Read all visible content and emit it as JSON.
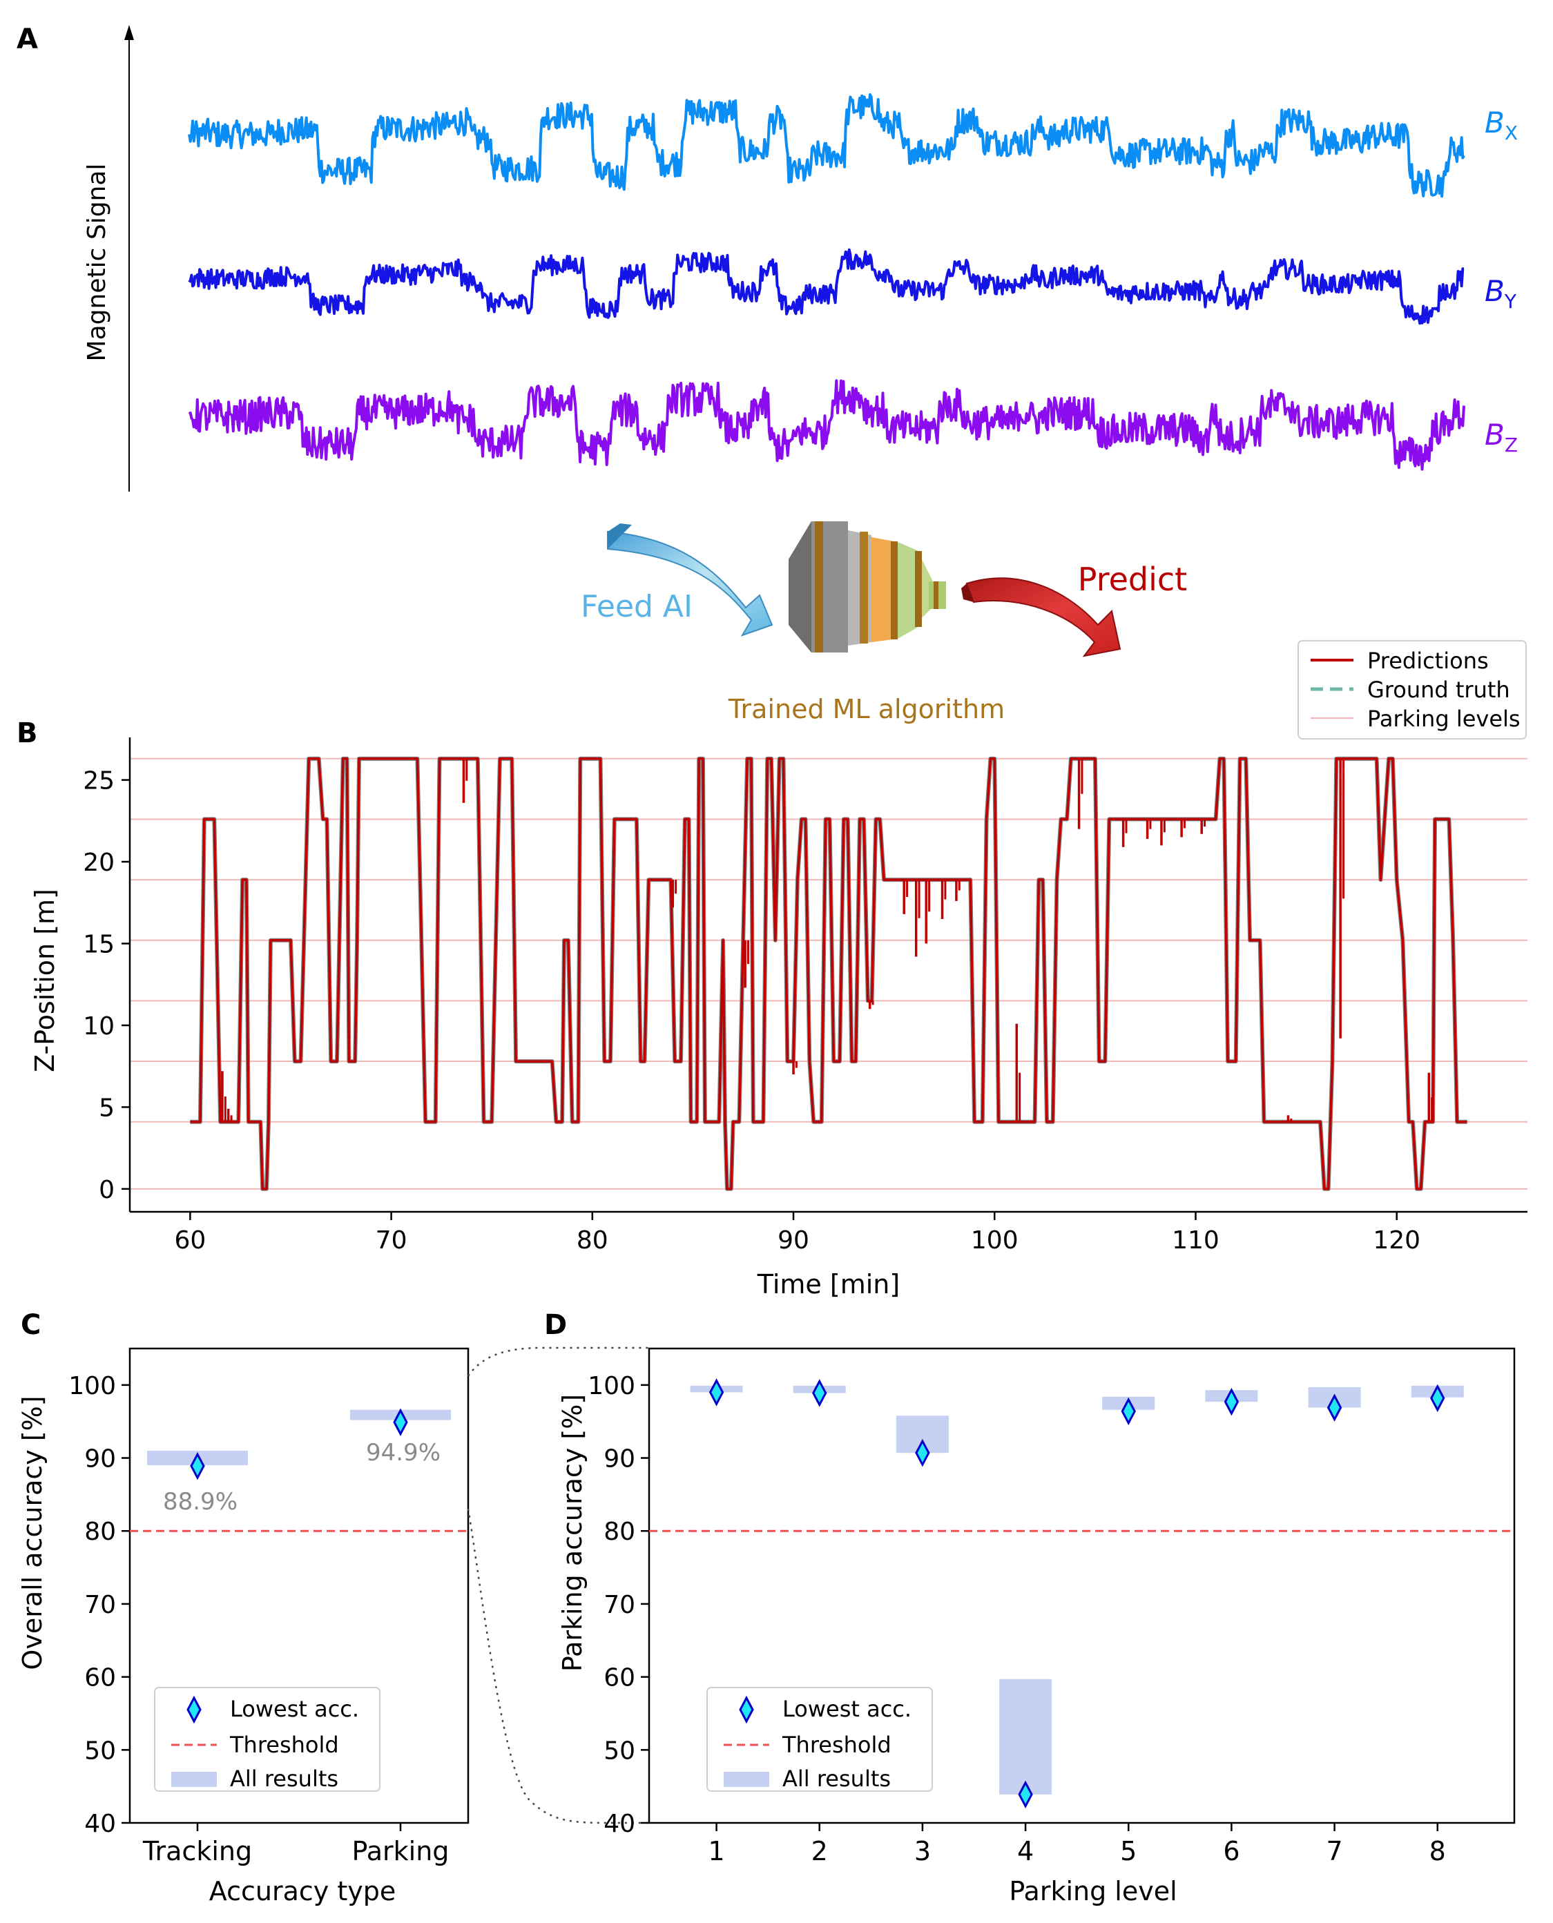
{
  "colors": {
    "bx": "#0a8df5",
    "by": "#1414e6",
    "bz": "#8c0cf0",
    "prediction": "#c00000",
    "ground_truth": "#6fb8a9",
    "gray_line": "#808080",
    "parking_level": "#f2b8b8",
    "threshold": "#f25050",
    "band": "#c6d0f2",
    "diamond_fill": "#22e6f5",
    "diamond_edge": "#0000cc",
    "feed_arrow": "#87d0ea",
    "predict_arrow": "#d42323",
    "ml_text": "#a8751c",
    "annot": "#8a8a8a"
  },
  "panels": {
    "a": {
      "letter": "A"
    },
    "b": {
      "letter": "B"
    },
    "c": {
      "letter": "C"
    },
    "d": {
      "letter": "D"
    }
  },
  "chart_data": [
    {
      "id": "A",
      "type": "line",
      "ylabel": "Magnetic Signal",
      "series": [
        {
          "name": "B",
          "sub": "X",
          "color_key": "bx"
        },
        {
          "name": "B",
          "sub": "Y",
          "color_key": "by"
        },
        {
          "name": "B",
          "sub": "Z",
          "color_key": "bz"
        }
      ],
      "flow": {
        "feed_label": "Feed AI",
        "model_label": "Trained ML algorithm",
        "predict_label": "Predict"
      }
    },
    {
      "id": "B",
      "type": "line",
      "xlabel": "Time [min]",
      "ylabel": "Z-Position [m]",
      "xlim": [
        57,
        126.5
      ],
      "ylim": [
        -1.4,
        27.6
      ],
      "xticks": [
        60,
        70,
        80,
        90,
        100,
        110,
        120
      ],
      "yticks": [
        0,
        5,
        10,
        15,
        20,
        25
      ],
      "parking_levels": [
        0,
        4.1,
        7.8,
        11.5,
        15.2,
        18.9,
        22.6,
        26.3
      ],
      "legend": [
        "Predictions",
        "Ground truth",
        "Parking levels"
      ],
      "legend_position": "top-right",
      "trajectory": [
        [
          60,
          4.1
        ],
        [
          60.5,
          4.1
        ],
        [
          60.7,
          22.6
        ],
        [
          61.2,
          22.6
        ],
        [
          61.5,
          4.1
        ],
        [
          62.4,
          4.1
        ],
        [
          62.6,
          18.9
        ],
        [
          62.8,
          18.9
        ],
        [
          62.9,
          4.1
        ],
        [
          63.5,
          4.1
        ],
        [
          63.6,
          0
        ],
        [
          63.8,
          0
        ],
        [
          63.9,
          4.1
        ],
        [
          64.0,
          15.2
        ],
        [
          65.0,
          15.2
        ],
        [
          65.2,
          7.8
        ],
        [
          65.5,
          7.8
        ],
        [
          65.9,
          26.3
        ],
        [
          66.4,
          26.3
        ],
        [
          66.6,
          22.6
        ],
        [
          66.8,
          22.6
        ],
        [
          67.0,
          7.8
        ],
        [
          67.3,
          7.8
        ],
        [
          67.6,
          26.3
        ],
        [
          67.8,
          26.3
        ],
        [
          67.9,
          7.8
        ],
        [
          68.2,
          7.8
        ],
        [
          68.3,
          15.2
        ],
        [
          68.4,
          26.3
        ],
        [
          71.3,
          26.3
        ],
        [
          71.5,
          15.2
        ],
        [
          71.7,
          4.1
        ],
        [
          72.2,
          4.1
        ],
        [
          72.4,
          26.3
        ],
        [
          74.3,
          26.3
        ],
        [
          74.6,
          4.1
        ],
        [
          75.0,
          4.1
        ],
        [
          75.2,
          15.2
        ],
        [
          75.4,
          26.3
        ],
        [
          76.0,
          26.3
        ],
        [
          76.2,
          7.8
        ],
        [
          78.0,
          7.8
        ],
        [
          78.2,
          4.1
        ],
        [
          78.5,
          4.1
        ],
        [
          78.6,
          15.2
        ],
        [
          78.8,
          15.2
        ],
        [
          79.0,
          4.1
        ],
        [
          79.3,
          4.1
        ],
        [
          79.4,
          26.3
        ],
        [
          80.4,
          26.3
        ],
        [
          80.6,
          7.8
        ],
        [
          80.9,
          7.8
        ],
        [
          81.1,
          22.6
        ],
        [
          82.2,
          22.6
        ],
        [
          82.4,
          7.8
        ],
        [
          82.6,
          7.8
        ],
        [
          82.8,
          18.9
        ],
        [
          83.9,
          18.9
        ],
        [
          84.1,
          7.8
        ],
        [
          84.4,
          7.8
        ],
        [
          84.6,
          22.6
        ],
        [
          84.8,
          22.6
        ],
        [
          84.9,
          4.1
        ],
        [
          85.2,
          4.1
        ],
        [
          85.3,
          26.3
        ],
        [
          85.5,
          26.3
        ],
        [
          85.6,
          4.1
        ],
        [
          86.3,
          4.1
        ],
        [
          86.5,
          15.2
        ],
        [
          86.6,
          4.1
        ],
        [
          86.7,
          0
        ],
        [
          86.9,
          0
        ],
        [
          87.0,
          4.1
        ],
        [
          87.3,
          4.1
        ],
        [
          87.5,
          15.2
        ],
        [
          87.7,
          26.3
        ],
        [
          87.9,
          26.3
        ],
        [
          88.0,
          4.1
        ],
        [
          88.5,
          4.1
        ],
        [
          88.7,
          26.3
        ],
        [
          88.9,
          26.3
        ],
        [
          89.1,
          15.2
        ],
        [
          89.3,
          26.3
        ],
        [
          89.5,
          26.3
        ],
        [
          89.7,
          7.8
        ],
        [
          90.0,
          7.8
        ],
        [
          90.2,
          18.9
        ],
        [
          90.4,
          22.6
        ],
        [
          90.6,
          22.6
        ],
        [
          90.8,
          7.8
        ],
        [
          91.0,
          4.1
        ],
        [
          91.4,
          4.1
        ],
        [
          91.6,
          22.6
        ],
        [
          91.8,
          22.6
        ],
        [
          92.0,
          7.8
        ],
        [
          92.3,
          7.8
        ],
        [
          92.5,
          22.6
        ],
        [
          92.7,
          22.6
        ],
        [
          92.9,
          7.8
        ],
        [
          93.1,
          7.8
        ],
        [
          93.3,
          22.6
        ],
        [
          93.5,
          22.6
        ],
        [
          93.7,
          11.5
        ],
        [
          93.9,
          11.5
        ],
        [
          94.1,
          22.6
        ],
        [
          94.3,
          22.6
        ],
        [
          94.5,
          18.9
        ],
        [
          98.8,
          18.9
        ],
        [
          99.0,
          4.1
        ],
        [
          99.4,
          4.1
        ],
        [
          99.6,
          22.6
        ],
        [
          99.8,
          26.3
        ],
        [
          100.0,
          26.3
        ],
        [
          100.2,
          4.1
        ],
        [
          102.0,
          4.1
        ],
        [
          102.2,
          18.9
        ],
        [
          102.4,
          18.9
        ],
        [
          102.6,
          4.1
        ],
        [
          102.9,
          4.1
        ],
        [
          103.1,
          18.9
        ],
        [
          103.3,
          22.6
        ],
        [
          103.6,
          22.6
        ],
        [
          103.8,
          26.3
        ],
        [
          105.0,
          26.3
        ],
        [
          105.2,
          7.8
        ],
        [
          105.5,
          7.8
        ],
        [
          105.7,
          22.6
        ],
        [
          111.0,
          22.6
        ],
        [
          111.2,
          26.3
        ],
        [
          111.4,
          26.3
        ],
        [
          111.6,
          7.8
        ],
        [
          112.0,
          7.8
        ],
        [
          112.2,
          26.3
        ],
        [
          112.5,
          26.3
        ],
        [
          112.7,
          15.2
        ],
        [
          113.2,
          15.2
        ],
        [
          113.4,
          4.1
        ],
        [
          116.2,
          4.1
        ],
        [
          116.4,
          0
        ],
        [
          116.6,
          0
        ],
        [
          116.8,
          7.8
        ],
        [
          117.0,
          26.3
        ],
        [
          119.0,
          26.3
        ],
        [
          119.2,
          18.9
        ],
        [
          119.4,
          22.6
        ],
        [
          119.6,
          26.3
        ],
        [
          119.8,
          26.3
        ],
        [
          120.0,
          18.9
        ],
        [
          120.3,
          15.2
        ],
        [
          120.6,
          4.1
        ],
        [
          120.8,
          4.1
        ],
        [
          121.0,
          0
        ],
        [
          121.2,
          0
        ],
        [
          121.4,
          4.1
        ],
        [
          121.8,
          4.1
        ],
        [
          121.9,
          22.6
        ],
        [
          122.6,
          22.6
        ],
        [
          122.8,
          15.2
        ],
        [
          123.0,
          4.1
        ],
        [
          123.5,
          4.1
        ]
      ],
      "prediction_glitches": [
        [
          61.6,
          7.2
        ],
        [
          61.9,
          4.9
        ],
        [
          73.6,
          23.6
        ],
        [
          84.0,
          17.2
        ],
        [
          87.6,
          12.3
        ],
        [
          90.0,
          7.0
        ],
        [
          93.8,
          11.0
        ],
        [
          95.5,
          16.8
        ],
        [
          96.1,
          14.2
        ],
        [
          96.6,
          15.0
        ],
        [
          97.4,
          16.5
        ],
        [
          98.1,
          17.6
        ],
        [
          101.1,
          10.1
        ],
        [
          104.2,
          22.0
        ],
        [
          106.4,
          20.9
        ],
        [
          107.6,
          21.4
        ],
        [
          108.3,
          21.0
        ],
        [
          109.3,
          21.5
        ],
        [
          110.3,
          21.7
        ],
        [
          114.6,
          4.5
        ],
        [
          117.2,
          9.2
        ],
        [
          121.6,
          7.1
        ]
      ]
    },
    {
      "id": "C",
      "type": "scatter",
      "xlabel": "Accuracy type",
      "ylabel": "Overall accuracy [%]",
      "categories": [
        "Tracking",
        "Parking"
      ],
      "ylim": [
        40,
        105
      ],
      "yticks": [
        40,
        50,
        60,
        70,
        80,
        90,
        100
      ],
      "lowest": [
        88.9,
        94.9
      ],
      "band_ranges": [
        [
          89.0,
          91.0
        ],
        [
          95.2,
          96.6
        ]
      ],
      "annotations": [
        "88.9%",
        "94.9%"
      ],
      "threshold": 80,
      "legend": [
        "Lowest acc.",
        "Threshold",
        "All results"
      ],
      "legend_position": "lower-left"
    },
    {
      "id": "D",
      "type": "scatter",
      "xlabel": "Parking level",
      "ylabel": "Parking accuracy [%]",
      "categories": [
        "1",
        "2",
        "3",
        "4",
        "5",
        "6",
        "7",
        "8"
      ],
      "ylim": [
        40,
        105
      ],
      "yticks": [
        40,
        50,
        60,
        70,
        80,
        90,
        100
      ],
      "lowest": [
        99.0,
        98.9,
        90.7,
        43.9,
        96.4,
        97.7,
        96.9,
        98.2
      ],
      "band_ranges": [
        [
          99.0,
          99.9
        ],
        [
          98.9,
          99.9
        ],
        [
          90.7,
          95.8
        ],
        [
          43.9,
          59.7
        ],
        [
          96.6,
          98.4
        ],
        [
          97.7,
          99.3
        ],
        [
          96.9,
          99.7
        ],
        [
          98.3,
          99.9
        ]
      ],
      "threshold": 80,
      "legend": [
        "Lowest acc.",
        "Threshold",
        "All results"
      ],
      "legend_position": "lower-left"
    }
  ]
}
